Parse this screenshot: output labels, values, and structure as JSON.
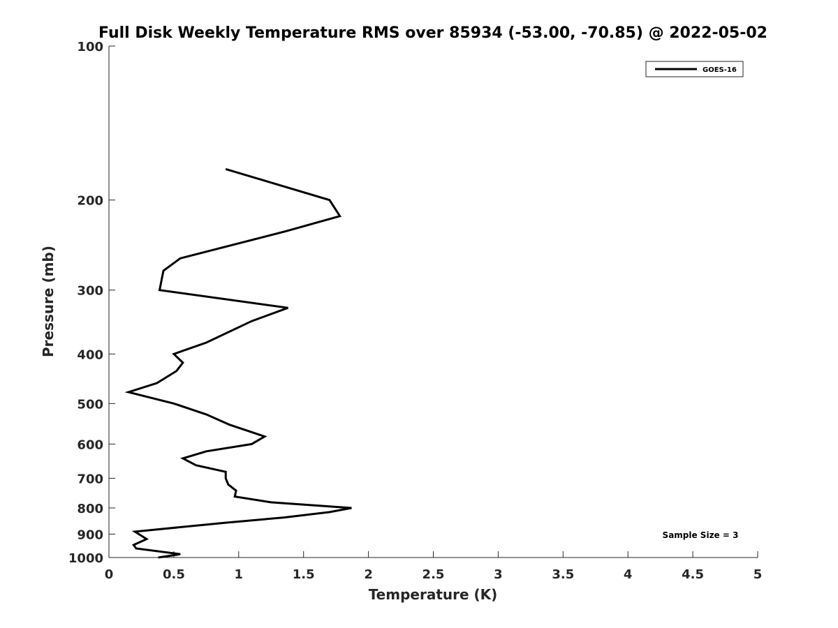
{
  "chart_data": {
    "type": "line",
    "title": "Full Disk Weekly Temperature RMS over 85934 (-53.00, -70.85) @ 2022-05-02",
    "xlabel": "Temperature (K)",
    "ylabel": "Pressure (mb)",
    "xlim": [
      0,
      5
    ],
    "ylim": [
      100,
      1000
    ],
    "yscale": "log",
    "yreversed": true,
    "x_ticks": [
      0,
      0.5,
      1,
      1.5,
      2,
      2.5,
      3,
      3.5,
      4,
      4.5,
      5
    ],
    "x_tick_labels": [
      "0",
      "0.5",
      "1",
      "1.5",
      "2",
      "2.5",
      "3",
      "3.5",
      "4",
      "4.5",
      "5"
    ],
    "y_ticks": [
      100,
      200,
      300,
      400,
      500,
      600,
      700,
      800,
      900,
      1000
    ],
    "y_tick_labels": [
      "100",
      "200",
      "300",
      "400",
      "500",
      "600",
      "700",
      "800",
      "900",
      "1000"
    ],
    "grid": false,
    "legend_position": "top-right",
    "series": [
      {
        "name": "GOES-16",
        "color": "#000000",
        "points": [
          {
            "x": 0.9,
            "y": 174
          },
          {
            "x": 1.7,
            "y": 200
          },
          {
            "x": 1.78,
            "y": 215
          },
          {
            "x": 1.37,
            "y": 230
          },
          {
            "x": 0.55,
            "y": 260
          },
          {
            "x": 0.42,
            "y": 275
          },
          {
            "x": 0.39,
            "y": 300
          },
          {
            "x": 1.38,
            "y": 325
          },
          {
            "x": 1.1,
            "y": 345
          },
          {
            "x": 0.75,
            "y": 380
          },
          {
            "x": 0.5,
            "y": 400
          },
          {
            "x": 0.57,
            "y": 416
          },
          {
            "x": 0.52,
            "y": 432
          },
          {
            "x": 0.37,
            "y": 456
          },
          {
            "x": 0.15,
            "y": 475
          },
          {
            "x": 0.5,
            "y": 500
          },
          {
            "x": 0.75,
            "y": 525
          },
          {
            "x": 0.93,
            "y": 550
          },
          {
            "x": 1.2,
            "y": 580
          },
          {
            "x": 1.1,
            "y": 600
          },
          {
            "x": 0.75,
            "y": 620
          },
          {
            "x": 0.57,
            "y": 640
          },
          {
            "x": 0.67,
            "y": 660
          },
          {
            "x": 0.9,
            "y": 680
          },
          {
            "x": 0.9,
            "y": 700
          },
          {
            "x": 0.92,
            "y": 720
          },
          {
            "x": 0.98,
            "y": 740
          },
          {
            "x": 0.97,
            "y": 760
          },
          {
            "x": 1.25,
            "y": 780
          },
          {
            "x": 1.87,
            "y": 800
          },
          {
            "x": 1.7,
            "y": 815
          },
          {
            "x": 1.35,
            "y": 835
          },
          {
            "x": 0.9,
            "y": 855
          },
          {
            "x": 0.2,
            "y": 890
          },
          {
            "x": 0.29,
            "y": 920
          },
          {
            "x": 0.19,
            "y": 945
          },
          {
            "x": 0.21,
            "y": 960
          },
          {
            "x": 0.55,
            "y": 985
          },
          {
            "x": 0.38,
            "y": 1000
          }
        ]
      }
    ],
    "annotations": [
      {
        "text": "Sample Size = 3",
        "position": "bottom-right"
      }
    ]
  }
}
